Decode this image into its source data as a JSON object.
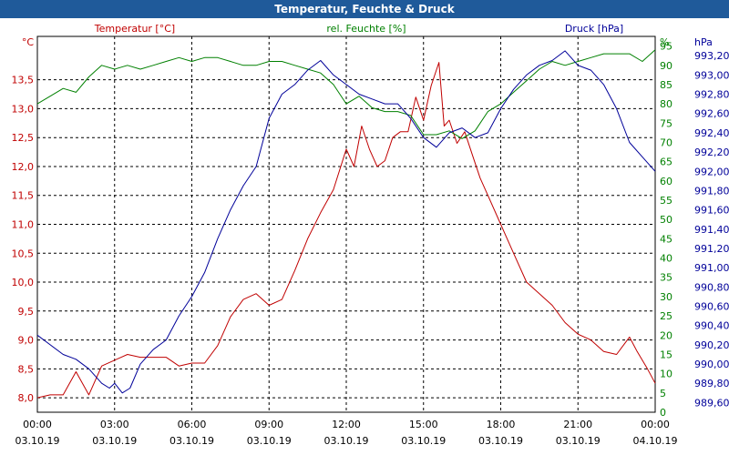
{
  "window": {
    "title": "Temperatur, Feuchte & Druck"
  },
  "colors": {
    "titlebar": "#1f5a9a",
    "temperature": "#c00000",
    "humidity": "#008000",
    "pressure": "#000099",
    "grid": "#000000"
  },
  "chart_data": {
    "type": "line",
    "title": "Temperatur, Feuchte & Druck",
    "x_tick_times": [
      "00:00",
      "03:00",
      "06:00",
      "09:00",
      "12:00",
      "15:00",
      "18:00",
      "21:00",
      "00:00"
    ],
    "x_tick_dates": [
      "03.10.19",
      "03.10.19",
      "03.10.19",
      "03.10.19",
      "03.10.19",
      "03.10.19",
      "03.10.19",
      "03.10.19",
      "04.10.19"
    ],
    "x_range_hours": [
      0,
      24
    ],
    "axes": {
      "temperature": {
        "unit_label": "°C",
        "series_label": "Temperatur [°C]",
        "range": [
          7.75,
          14.25
        ],
        "ticks": [
          "8,0",
          "8,5",
          "9,0",
          "9,5",
          "10,0",
          "10,5",
          "11,0",
          "11,5",
          "12,0",
          "12,5",
          "13,0",
          "13,5"
        ],
        "tick_values": [
          8.0,
          8.5,
          9.0,
          9.5,
          10.0,
          10.5,
          11.0,
          11.5,
          12.0,
          12.5,
          13.0,
          13.5
        ]
      },
      "humidity": {
        "unit_label": "%",
        "series_label": "rel. Feuchte [%]",
        "range": [
          0,
          97.5
        ],
        "ticks": [
          "0",
          "5",
          "10",
          "15",
          "20",
          "25",
          "30",
          "35",
          "40",
          "45",
          "50",
          "55",
          "60",
          "65",
          "70",
          "75",
          "80",
          "85",
          "90",
          "95"
        ],
        "tick_values": [
          0,
          5,
          10,
          15,
          20,
          25,
          30,
          35,
          40,
          45,
          50,
          55,
          60,
          65,
          70,
          75,
          80,
          85,
          90,
          95
        ]
      },
      "pressure": {
        "unit_label": "hPa",
        "series_label": "Druck [hPa]",
        "range": [
          989.5,
          993.4
        ],
        "ticks": [
          "989,60",
          "989,80",
          "990,00",
          "990,20",
          "990,40",
          "990,60",
          "990,80",
          "991,00",
          "991,20",
          "991,40",
          "991,60",
          "991,80",
          "992,00",
          "992,20",
          "992,40",
          "992,60",
          "992,80",
          "993,00",
          "993,20"
        ],
        "tick_values": [
          989.6,
          989.8,
          990.0,
          990.2,
          990.4,
          990.6,
          990.8,
          991.0,
          991.2,
          991.4,
          991.6,
          991.8,
          992.0,
          992.2,
          992.4,
          992.6,
          992.8,
          993.0,
          993.2
        ]
      }
    },
    "series": [
      {
        "name": "Temperatur [°C]",
        "axis": "temperature",
        "x": [
          0,
          0.5,
          1,
          1.5,
          2,
          2.5,
          3,
          3.5,
          4,
          4.5,
          5,
          5.5,
          6,
          6.5,
          7,
          7.5,
          8,
          8.5,
          9,
          9.5,
          10,
          10.5,
          11,
          11.5,
          12,
          12.3,
          12.6,
          12.9,
          13.2,
          13.5,
          13.8,
          14.1,
          14.4,
          14.7,
          15,
          15.3,
          15.6,
          15.8,
          16,
          16.3,
          16.6,
          16.9,
          17.2,
          17.5,
          18,
          18.5,
          19,
          19.5,
          20,
          20.5,
          21,
          21.5,
          22,
          22.5,
          23,
          23.3,
          23.7,
          24
        ],
        "values": [
          8.0,
          8.05,
          8.05,
          8.45,
          8.05,
          8.55,
          8.65,
          8.75,
          8.7,
          8.7,
          8.7,
          8.55,
          8.6,
          8.6,
          8.9,
          9.4,
          9.7,
          9.8,
          9.6,
          9.7,
          10.2,
          10.75,
          11.2,
          11.6,
          12.3,
          12.0,
          12.7,
          12.3,
          12.0,
          12.1,
          12.5,
          12.6,
          12.6,
          13.2,
          12.8,
          13.4,
          13.8,
          12.7,
          12.8,
          12.4,
          12.6,
          12.2,
          11.8,
          11.5,
          11.0,
          10.5,
          10.0,
          9.8,
          9.6,
          9.3,
          9.1,
          9.0,
          8.8,
          8.75,
          9.05,
          8.8,
          8.5,
          8.25
        ]
      },
      {
        "name": "rel. Feuchte [%]",
        "axis": "humidity",
        "x": [
          0,
          0.5,
          1,
          1.5,
          2,
          2.5,
          3,
          3.5,
          4,
          4.5,
          5,
          5.5,
          6,
          6.5,
          7,
          7.5,
          8,
          8.5,
          9,
          9.5,
          10,
          10.5,
          11,
          11.5,
          12,
          12.5,
          13,
          13.5,
          14,
          14.5,
          15,
          15.5,
          16,
          16.5,
          17,
          17.5,
          18,
          18.5,
          19,
          19.5,
          20,
          20.5,
          21,
          21.5,
          22,
          22.5,
          23,
          23.5,
          24
        ],
        "values": [
          80,
          82,
          84,
          83,
          87,
          90,
          89,
          90,
          89,
          90,
          91,
          92,
          91,
          92,
          92,
          91,
          90,
          90,
          91,
          91,
          90,
          89,
          88,
          85,
          80,
          82,
          79,
          78,
          78,
          77,
          72,
          72,
          73,
          71,
          73,
          78,
          80,
          83,
          86,
          89,
          91,
          90,
          91,
          92,
          93,
          93,
          93,
          91,
          94
        ]
      },
      {
        "name": "Druck [hPa]",
        "axis": "pressure",
        "x": [
          0,
          0.5,
          1,
          1.5,
          2,
          2.5,
          2.8,
          3,
          3.3,
          3.6,
          4,
          4.5,
          5,
          5.5,
          6,
          6.5,
          7,
          7.5,
          8,
          8.5,
          9,
          9.5,
          10,
          10.5,
          11,
          11.5,
          12,
          12.5,
          13,
          13.5,
          14,
          14.5,
          15,
          15.5,
          16,
          16.5,
          17,
          17.5,
          18,
          18.5,
          19,
          19.5,
          20,
          20.5,
          21,
          21.5,
          22,
          22.5,
          23,
          23.5,
          24
        ],
        "values": [
          990.3,
          990.2,
          990.1,
          990.05,
          989.95,
          989.8,
          989.75,
          989.8,
          989.7,
          989.75,
          990.0,
          990.15,
          990.25,
          990.5,
          990.7,
          990.95,
          991.3,
          991.6,
          991.85,
          992.05,
          992.55,
          992.8,
          992.9,
          993.05,
          993.15,
          993.0,
          992.9,
          992.8,
          992.75,
          992.7,
          992.7,
          992.55,
          992.35,
          992.25,
          992.4,
          992.45,
          992.35,
          992.4,
          992.65,
          992.85,
          993.0,
          993.1,
          993.15,
          993.25,
          993.1,
          993.05,
          992.9,
          992.65,
          992.3,
          992.15,
          992.0
        ]
      }
    ]
  }
}
